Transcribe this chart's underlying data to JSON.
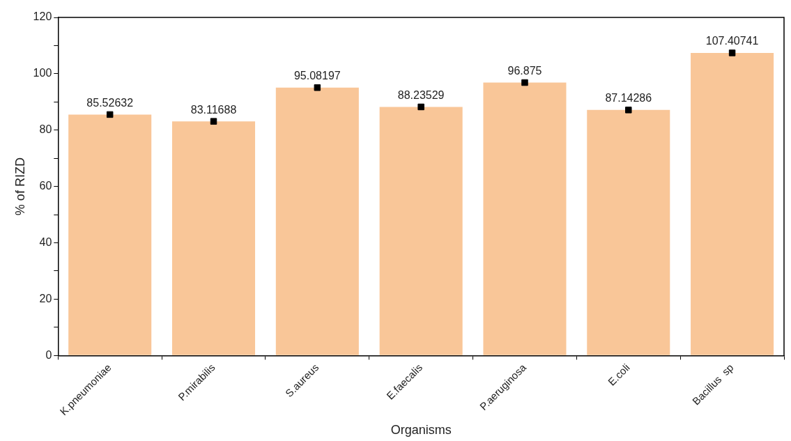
{
  "chart_data": {
    "type": "bar",
    "xlabel": "Organisms",
    "ylabel": "% of RIZD",
    "categories": [
      "K.pneumoniae",
      "P.mirabilis",
      "S.aureus",
      "E.faecalis",
      "P.aeruginosa",
      "E.coli",
      "Bacillus  sp"
    ],
    "series": [
      {
        "color": "#f9c698",
        "values": [
          85.52632,
          83.11688,
          95.08197,
          88.23529,
          96.875,
          87.14286,
          107.40741
        ],
        "value_labels": [
          "85.52632",
          "83.11688",
          "95.08197",
          "88.23529",
          "96.875",
          "87.14286",
          "107.40741"
        ]
      },
      {
        "type": "scatter",
        "color": "#000000",
        "marker": "square",
        "x": [
          "K.pneumoniae",
          "P.mirabilis",
          "S.aureus",
          "E.faecalis",
          "P.aeruginosa",
          "E.coli",
          "Bacillus  sp"
        ],
        "values": [
          85.52632,
          83.11688,
          95.08197,
          88.23529,
          96.875,
          87.14286,
          107.40741
        ]
      }
    ],
    "ylim": [
      0,
      120
    ],
    "yticks": [
      0,
      {
        "value": 10,
        "label": null
      },
      20,
      {
        "value": 30,
        "label": null
      },
      40,
      {
        "value": 50,
        "label": null
      },
      60,
      {
        "value": 70,
        "label": null
      },
      80,
      {
        "value": 90,
        "label": null
      },
      100,
      {
        "value": 110,
        "label": null
      },
      120
    ],
    "grid": false,
    "legend": false
  }
}
